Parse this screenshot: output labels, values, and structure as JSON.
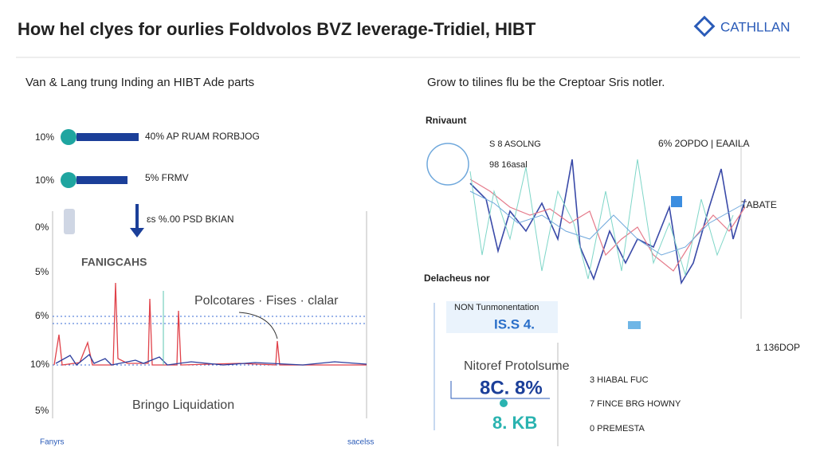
{
  "header": {
    "title": "How hel clyes for ourlies Foldvolos BVZ leverage-Tridiel, HIBT",
    "logo": "CATHLLAN"
  },
  "left_panel": {
    "heading": "Van & Lang trung Inding an HIBT Ade parts",
    "rows": [
      {
        "pct": "10%",
        "label": "40% AP RUAM RORBJOG"
      },
      {
        "pct": "10%",
        "label": "5% FRMV"
      },
      {
        "pct": "0%",
        "label": "ɛs %.00 PSD BKIAN"
      }
    ],
    "axis_labels": [
      "5%",
      "6%",
      "10%",
      "5%"
    ],
    "chart_label": "FANIGCAHS",
    "annotation": "Polcotares · Fises · clalar",
    "caption": "Bringo Liquidation",
    "footer": [
      "Fanyrs",
      "sacelss"
    ]
  },
  "right_panel": {
    "heading": "Grow to tilines flu be the Creptoar Sris notler.",
    "chart_label": "Rnivaunt",
    "tags": [
      "S 8 ASOLNG",
      "98 16asal",
      "6% 2OPDO | EAAILA",
      "TABATE"
    ],
    "section_label": "Delacheus nor",
    "box_title": "NON Tunmonentation",
    "box_value": "IS.S 4.",
    "side_value": "1 136DOP",
    "card": {
      "title": "Nitoref Protolsume",
      "value1": "8C. 8%",
      "value2": "8. KB"
    },
    "list": [
      "3 HIABAL FUC",
      "7 FINCE BRG HOWNY",
      "0 PREMESTA"
    ]
  }
}
